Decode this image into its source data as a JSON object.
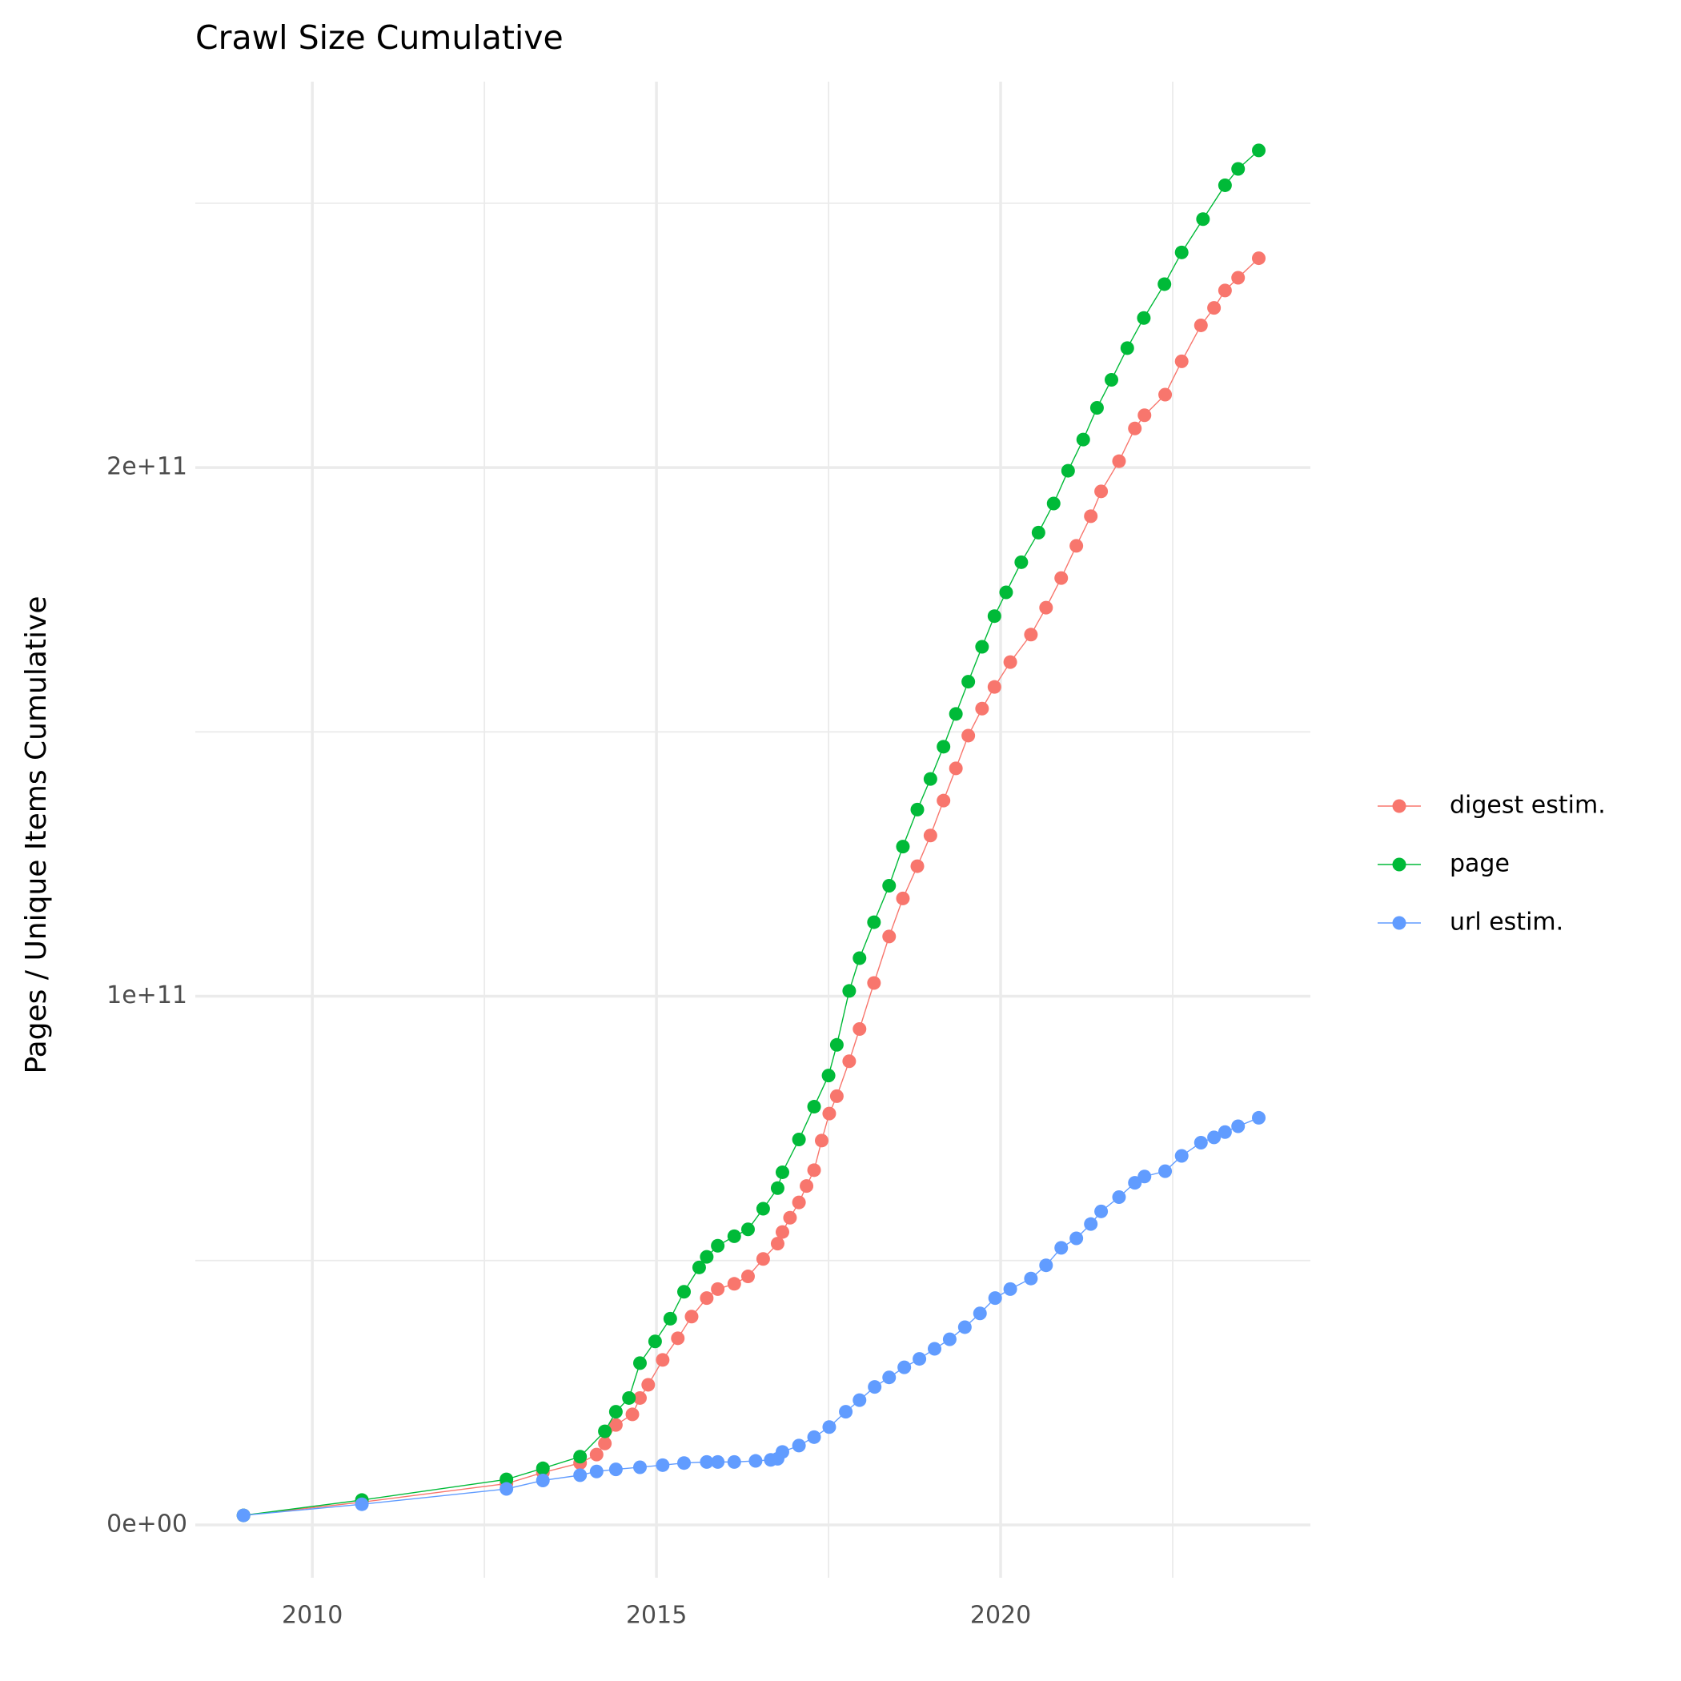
{
  "chart_data": {
    "type": "line",
    "title": "Crawl Size Cumulative",
    "ylabel": "Pages / Unique Items Cumulative",
    "xlim": [
      2008.3,
      2024.5
    ],
    "ylim": [
      -10000000000.0,
      273000000000.0
    ],
    "xticks": [
      2010,
      2015,
      2020
    ],
    "xminorticks": [
      2012.5,
      2017.5,
      2022.5
    ],
    "yticks": [
      {
        "value": 0,
        "label": "0e+00"
      },
      {
        "value": 100000000000.0,
        "label": "1e+11"
      },
      {
        "value": 200000000000.0,
        "label": "2e+11"
      }
    ],
    "yminorticks": [
      50000000000.0,
      150000000000.0,
      250000000000.0
    ],
    "grid": true,
    "markers": true,
    "legend": "right",
    "series": [
      {
        "name": "digest estim.",
        "color": "#F8766D",
        "x": [
          2009.0,
          2010.72,
          2012.82,
          2013.35,
          2013.89,
          2014.13,
          2014.25,
          2014.41,
          2014.65,
          2014.76,
          2014.88,
          2015.09,
          2015.31,
          2015.51,
          2015.73,
          2015.89,
          2016.13,
          2016.33,
          2016.55,
          2016.76,
          2016.83,
          2016.94,
          2017.07,
          2017.18,
          2017.29,
          2017.4,
          2017.51,
          2017.62,
          2017.8,
          2017.95,
          2018.16,
          2018.38,
          2018.58,
          2018.79,
          2018.98,
          2019.17,
          2019.35,
          2019.53,
          2019.73,
          2019.91,
          2020.14,
          2020.44,
          2020.66,
          2020.88,
          2021.1,
          2021.31,
          2021.46,
          2021.72,
          2021.95,
          2022.09,
          2022.39,
          2022.63,
          2022.91,
          2023.1,
          2023.26,
          2023.45,
          2023.75
        ],
        "values": [
          1800000000.0,
          4300000000.0,
          7800000000.0,
          9900000000.0,
          11700000000.0,
          13300000000.0,
          15400000000.0,
          18900000000.0,
          20900000000.0,
          24000000000.0,
          26500000000.0,
          31200000000.0,
          35300000000.0,
          39400000000.0,
          42900000000.0,
          44600000000.0,
          45600000000.0,
          47000000000.0,
          50300000000.0,
          53200000000.0,
          55400000000.0,
          58100000000.0,
          61000000000.0,
          64100000000.0,
          67100000000.0,
          72700000000.0,
          77800000000.0,
          81100000000.0,
          87700000000.0,
          93800000000.0,
          102500000000.0,
          111300000000.0,
          118500000000.0,
          124600000000.0,
          130400000000.0,
          137000000000.0,
          143100000000.0,
          149300000000.0,
          154400000000.0,
          158500000000.0,
          163200000000.0,
          168400000000.0,
          173500000000.0,
          179100000000.0,
          185200000000.0,
          190800000000.0,
          195500000000.0,
          201200000000.0,
          207400000000.0,
          209900000000.0,
          213800000000.0,
          220100000000.0,
          226900000000.0,
          230200000000.0,
          233500000000.0,
          235900000000.0,
          239600000000.0
        ]
      },
      {
        "name": "page",
        "color": "#00BA38",
        "x": [
          2009.0,
          2010.72,
          2012.82,
          2013.35,
          2013.89,
          2014.25,
          2014.41,
          2014.6,
          2014.76,
          2014.98,
          2015.2,
          2015.4,
          2015.62,
          2015.73,
          2015.89,
          2016.13,
          2016.33,
          2016.55,
          2016.76,
          2016.83,
          2017.07,
          2017.29,
          2017.5,
          2017.62,
          2017.8,
          2017.95,
          2018.16,
          2018.38,
          2018.58,
          2018.79,
          2018.98,
          2019.17,
          2019.35,
          2019.53,
          2019.73,
          2019.91,
          2020.08,
          2020.3,
          2020.55,
          2020.77,
          2020.98,
          2021.2,
          2021.4,
          2021.61,
          2021.84,
          2022.08,
          2022.38,
          2022.63,
          2022.94,
          2023.26,
          2023.45,
          2023.75
        ],
        "values": [
          1800000000.0,
          4700000000.0,
          8600000000.0,
          10700000000.0,
          12900000000.0,
          17700000000.0,
          21400000000.0,
          24000000000.0,
          30600000000.0,
          34700000000.0,
          39000000000.0,
          44100000000.0,
          48700000000.0,
          50700000000.0,
          52800000000.0,
          54600000000.0,
          55900000000.0,
          59800000000.0,
          63700000000.0,
          66700000000.0,
          72900000000.0,
          79100000000.0,
          85000000000.0,
          90800000000.0,
          101000000000.0,
          107200000000.0,
          114000000000.0,
          120900000000.0,
          128300000000.0,
          135300000000.0,
          141100000000.0,
          147200000000.0,
          153400000000.0,
          159500000000.0,
          166100000000.0,
          171900000000.0,
          176400000000.0,
          182100000000.0,
          187700000000.0,
          193200000000.0,
          199400000000.0,
          205300000000.0,
          211300000000.0,
          216600000000.0,
          222600000000.0,
          228300000000.0,
          234700000000.0,
          240700000000.0,
          247000000000.0,
          253400000000.0,
          256500000000.0,
          260000000000.0
        ]
      },
      {
        "name": "url estim.",
        "color": "#619CFF",
        "x": [
          2009.0,
          2010.72,
          2012.82,
          2013.35,
          2013.89,
          2014.13,
          2014.41,
          2014.76,
          2015.09,
          2015.4,
          2015.73,
          2015.89,
          2016.13,
          2016.44,
          2016.66,
          2016.76,
          2016.83,
          2017.07,
          2017.29,
          2017.51,
          2017.75,
          2017.95,
          2018.17,
          2018.38,
          2018.6,
          2018.82,
          2019.04,
          2019.26,
          2019.48,
          2019.7,
          2019.92,
          2020.14,
          2020.44,
          2020.66,
          2020.88,
          2021.1,
          2021.31,
          2021.46,
          2021.72,
          2021.95,
          2022.09,
          2022.39,
          2022.63,
          2022.91,
          2023.1,
          2023.26,
          2023.45,
          2023.75
        ],
        "values": [
          1800000000.0,
          3900000000.0,
          6800000000.0,
          8400000000.0,
          9400000000.0,
          10100000000.0,
          10500000000.0,
          10900000000.0,
          11300000000.0,
          11700000000.0,
          11900000000.0,
          11900000000.0,
          11900000000.0,
          12100000000.0,
          12300000000.0,
          12500000000.0,
          13800000000.0,
          15000000000.0,
          16600000000.0,
          18500000000.0,
          21400000000.0,
          23600000000.0,
          26100000000.0,
          27900000000.0,
          29800000000.0,
          31400000000.0,
          33300000000.0,
          35100000000.0,
          37400000000.0,
          40000000000.0,
          42900000000.0,
          44600000000.0,
          46600000000.0,
          49100000000.0,
          52400000000.0,
          54200000000.0,
          56900000000.0,
          59300000000.0,
          62000000000.0,
          64700000000.0,
          65900000000.0,
          66900000000.0,
          69800000000.0,
          72300000000.0,
          73300000000.0,
          74300000000.0,
          75400000000.0,
          77000000000.0
        ]
      }
    ]
  }
}
